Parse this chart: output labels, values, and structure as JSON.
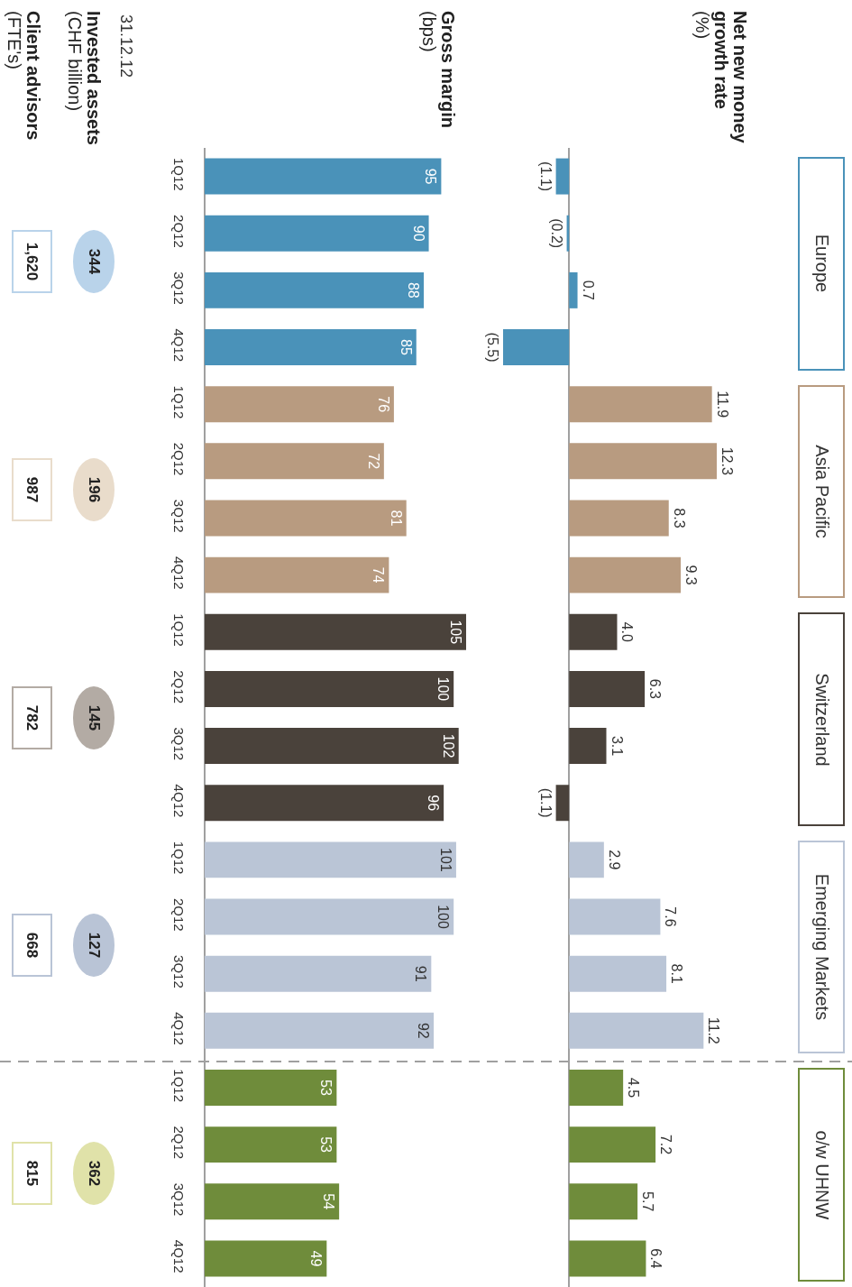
{
  "chart_data": [
    {
      "type": "bar",
      "orientation": "horizontal",
      "title": "Net new money growth rate (%)",
      "categories": [
        "1Q12",
        "2Q12",
        "3Q12",
        "4Q12",
        "1Q12",
        "2Q12",
        "3Q12",
        "4Q12",
        "1Q12",
        "2Q12",
        "3Q12",
        "4Q12",
        "1Q12",
        "2Q12",
        "3Q12",
        "4Q12",
        "1Q12",
        "2Q12",
        "3Q12",
        "4Q12"
      ],
      "tick_labels": false,
      "annotations": [
        "Europe",
        "Asia Pacific",
        "Switzerland",
        "Emerging Markets",
        "o/w UHNW"
      ],
      "series": [
        {
          "color": "#4a92b9",
          "values": [
            -1.1,
            -0.2,
            0.7,
            -5.5,
            null,
            null,
            null,
            null,
            null,
            null,
            null,
            null,
            null,
            null,
            null,
            null,
            null,
            null,
            null,
            null
          ],
          "value_labels": [
            "(1.1)",
            "(0.2)",
            "0.7",
            "(5.5)",
            null,
            null,
            null,
            null,
            null,
            null,
            null,
            null,
            null,
            null,
            null,
            null,
            null,
            null,
            null,
            null
          ]
        },
        {
          "color": "#b89b80",
          "values": [
            null,
            null,
            null,
            null,
            11.9,
            12.3,
            8.3,
            9.3,
            null,
            null,
            null,
            null,
            null,
            null,
            null,
            null,
            null,
            null,
            null,
            null
          ],
          "value_labels": [
            null,
            null,
            null,
            null,
            "11.9",
            "12.3",
            "8.3",
            "9.3",
            null,
            null,
            null,
            null,
            null,
            null,
            null,
            null,
            null,
            null,
            null,
            null
          ]
        },
        {
          "color": "#4a423b",
          "values": [
            null,
            null,
            null,
            null,
            null,
            null,
            null,
            null,
            4.0,
            6.3,
            3.1,
            -1.1,
            null,
            null,
            null,
            null,
            null,
            null,
            null,
            null
          ],
          "value_labels": [
            null,
            null,
            null,
            null,
            null,
            null,
            null,
            null,
            "4.0",
            "6.3",
            "3.1",
            "(1.1)",
            null,
            null,
            null,
            null,
            null,
            null,
            null,
            null
          ]
        },
        {
          "color": "#bac5d6",
          "values": [
            null,
            null,
            null,
            null,
            null,
            null,
            null,
            null,
            null,
            null,
            null,
            null,
            2.9,
            7.6,
            8.1,
            11.2,
            null,
            null,
            null,
            null
          ],
          "value_labels": [
            null,
            null,
            null,
            null,
            null,
            null,
            null,
            null,
            null,
            null,
            null,
            null,
            "2.9",
            "7.6",
            "8.1",
            "11.2",
            null,
            null,
            null,
            null
          ]
        },
        {
          "color": "#6f8c3b",
          "values": [
            null,
            null,
            null,
            null,
            null,
            null,
            null,
            null,
            null,
            null,
            null,
            null,
            null,
            null,
            null,
            null,
            4.5,
            7.2,
            5.7,
            6.4
          ],
          "value_labels": [
            null,
            null,
            null,
            null,
            null,
            null,
            null,
            null,
            null,
            null,
            null,
            null,
            null,
            null,
            null,
            null,
            "4.5",
            "7.2",
            "5.7",
            "6.4"
          ]
        }
      ]
    },
    {
      "type": "bar",
      "orientation": "horizontal",
      "title": "Gross margin (bps)",
      "categories": [
        "1Q12",
        "2Q12",
        "3Q12",
        "4Q12",
        "1Q12",
        "2Q12",
        "3Q12",
        "4Q12",
        "1Q12",
        "2Q12",
        "3Q12",
        "4Q12",
        "1Q12",
        "2Q12",
        "3Q12",
        "4Q12",
        "1Q12",
        "2Q12",
        "3Q12",
        "4Q12"
      ],
      "tick_labels": "y",
      "data_labels": true,
      "series": [
        {
          "color": "#4a92b9",
          "values": [
            95,
            90,
            88,
            85,
            null,
            null,
            null,
            null,
            null,
            null,
            null,
            null,
            null,
            null,
            null,
            null,
            null,
            null,
            null,
            null
          ]
        },
        {
          "color": "#b89b80",
          "values": [
            null,
            null,
            null,
            null,
            76,
            72,
            81,
            74,
            null,
            null,
            null,
            null,
            null,
            null,
            null,
            null,
            null,
            null,
            null,
            null
          ]
        },
        {
          "color": "#4a423b",
          "values": [
            null,
            null,
            null,
            null,
            null,
            null,
            null,
            null,
            105,
            100,
            102,
            96,
            null,
            null,
            null,
            null,
            null,
            null,
            null,
            null
          ]
        },
        {
          "color": "#bac5d6",
          "values": [
            null,
            null,
            null,
            null,
            null,
            null,
            null,
            null,
            null,
            null,
            null,
            null,
            101,
            100,
            91,
            92,
            null,
            null,
            null,
            null
          ]
        },
        {
          "color": "#6f8c3b",
          "values": [
            null,
            null,
            null,
            null,
            null,
            null,
            null,
            null,
            null,
            null,
            null,
            null,
            null,
            null,
            null,
            null,
            53,
            53,
            54,
            49
          ]
        }
      ]
    },
    {
      "type": "other",
      "title": "Invested assets (CHF billion)",
      "annotations": [
        "31.12.12"
      ],
      "values": [
        344,
        196,
        145,
        127,
        362
      ],
      "colors": [
        "#b9d3ea",
        "#e9dccb",
        "#b3aba4",
        "#b9c4d6",
        "#e0e2a9"
      ],
      "data_labels": true
    },
    {
      "type": "other",
      "title": "Client advisors (FTE's)",
      "values": [
        1620,
        987,
        782,
        668,
        815
      ],
      "value_labels": [
        "1,620",
        "987",
        "782",
        "668",
        "815"
      ],
      "colors": [
        "#b9d3ea",
        "#e9dccb",
        "#b3aba4",
        "#b9c4d6",
        "#e0e2a9"
      ]
    }
  ]
}
